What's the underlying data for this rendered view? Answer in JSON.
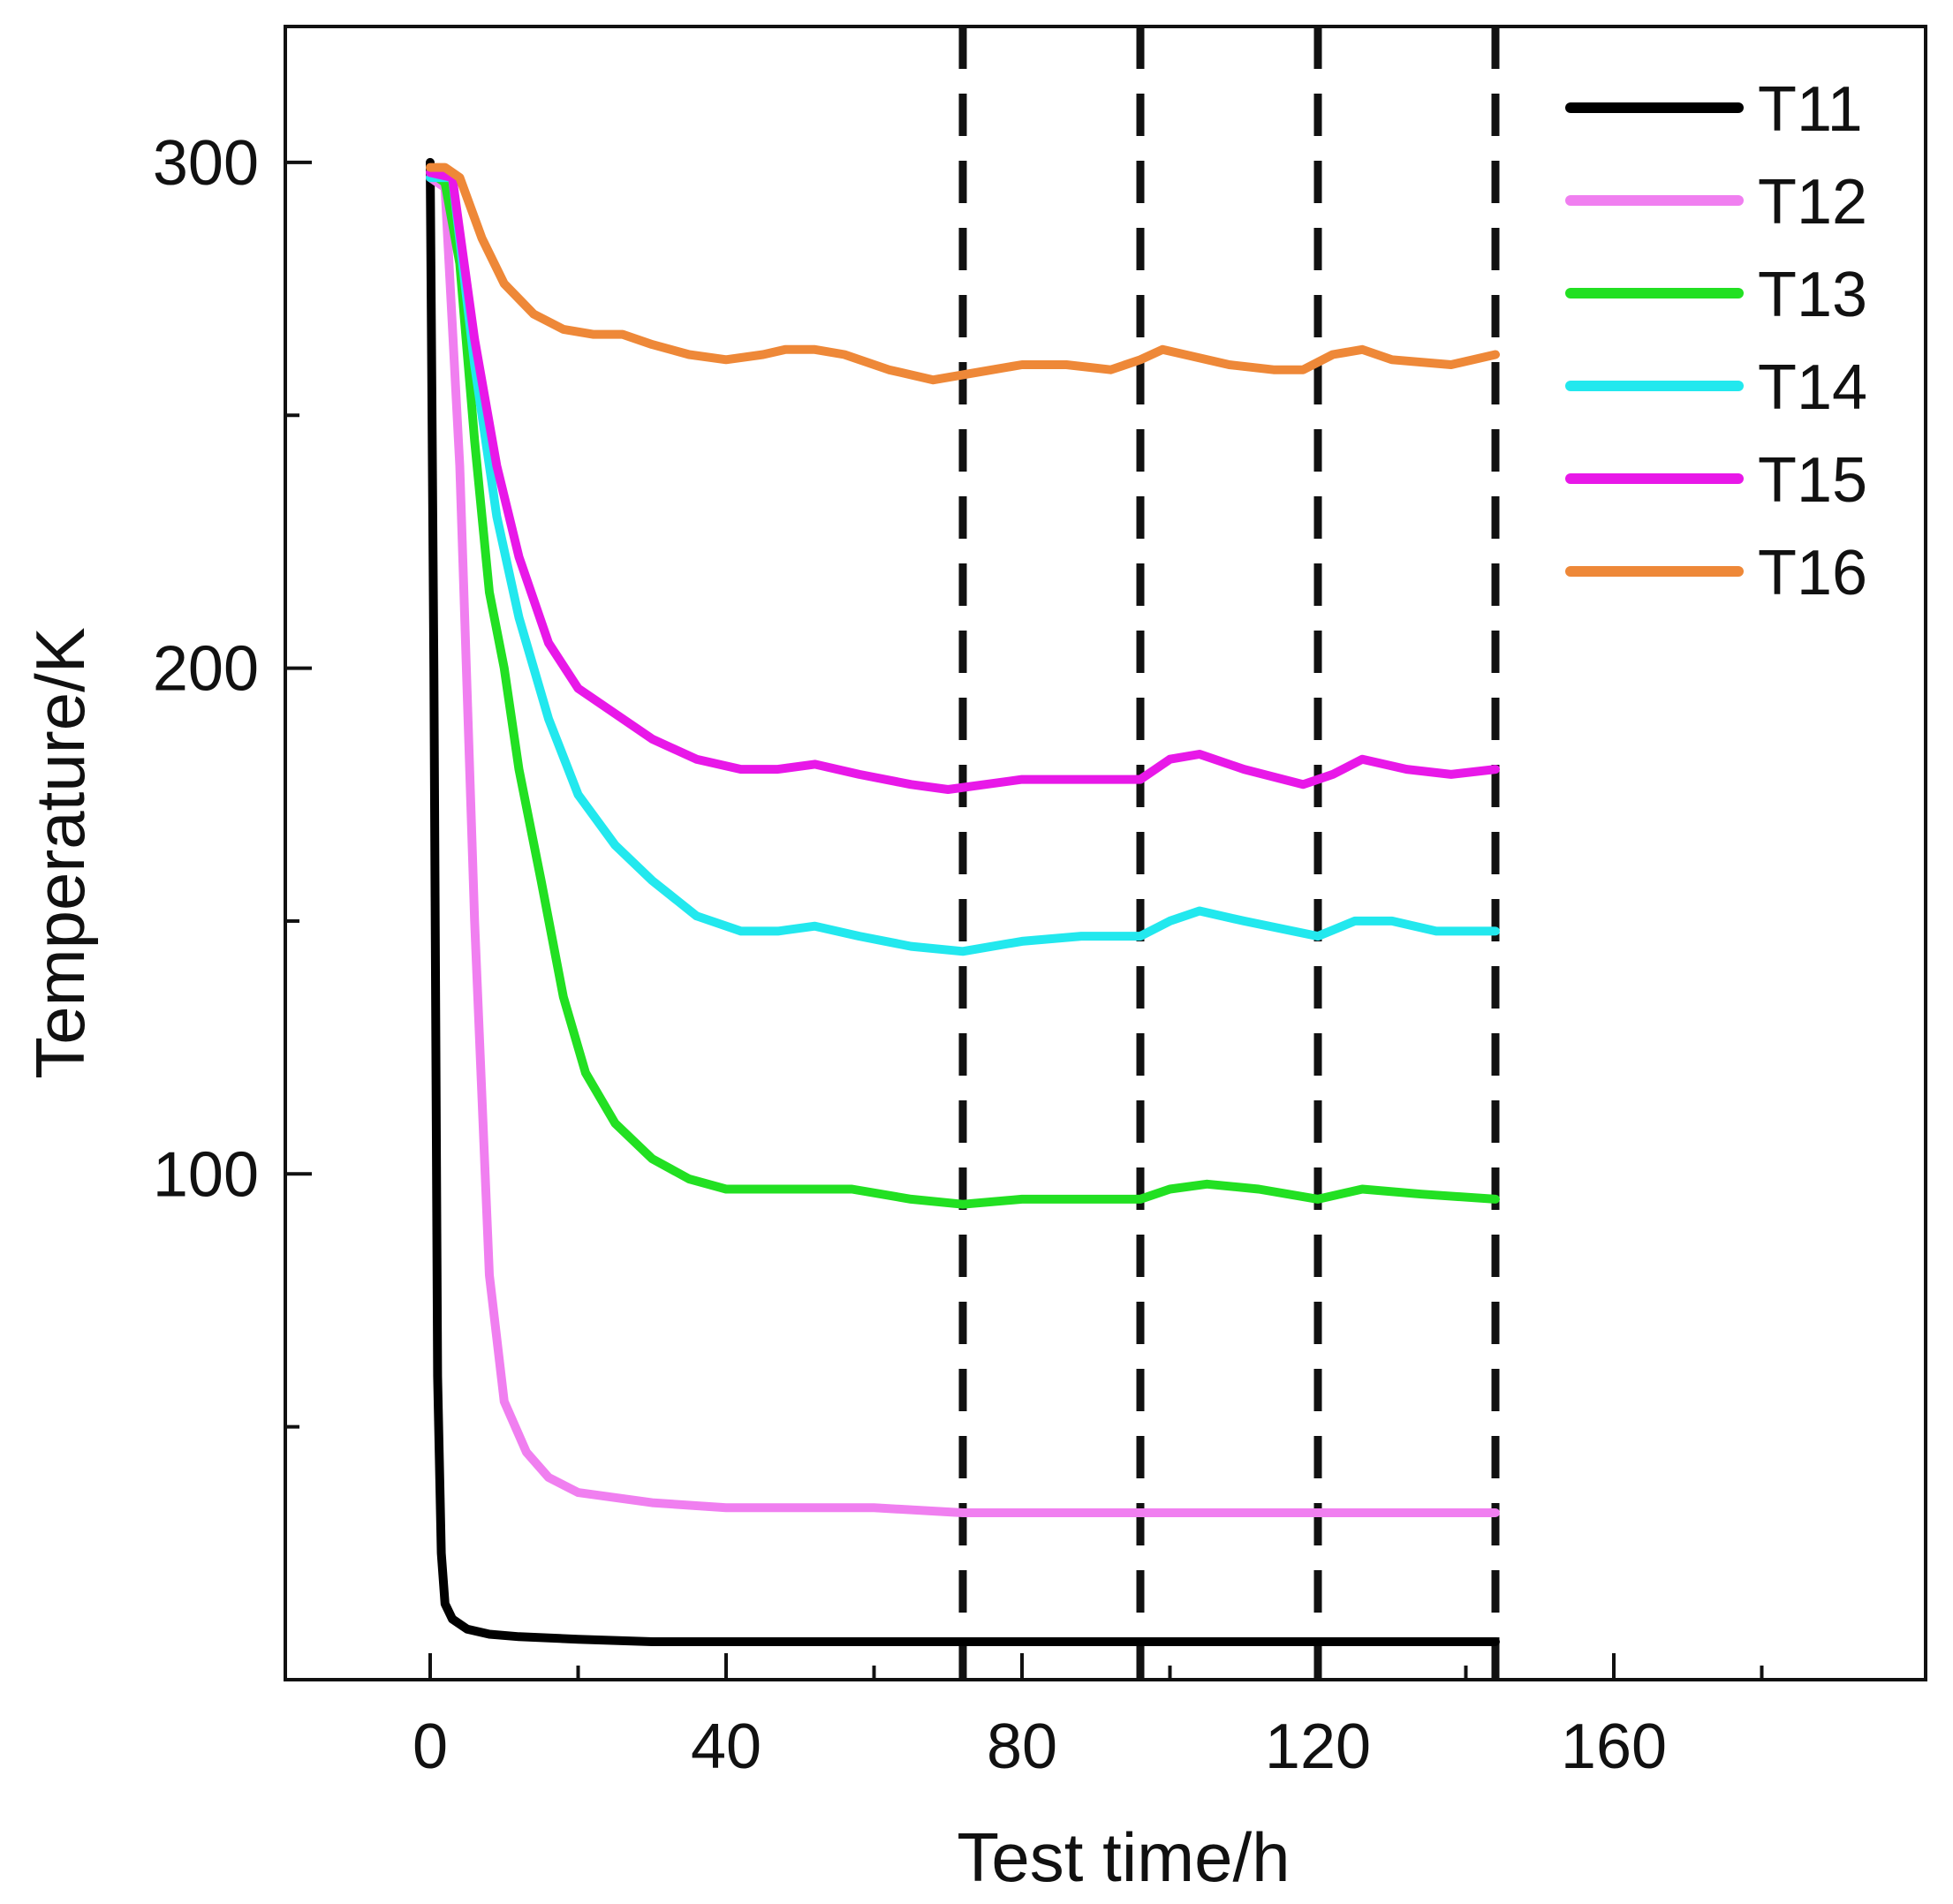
{
  "chart_data": {
    "type": "line",
    "title": "",
    "xlabel": "Test time/h",
    "ylabel": "Temperature/K",
    "xlim": [
      -20,
      200
    ],
    "ylim": [
      0,
      330
    ],
    "x_ticks": [
      0,
      40,
      80,
      120,
      160
    ],
    "x_minor_ticks": [
      20,
      60,
      100,
      140,
      180
    ],
    "y_ticks": [
      100,
      200,
      300
    ],
    "y_minor_ticks": [
      50,
      150,
      250
    ],
    "grid": false,
    "legend_position": "top-right",
    "reference_lines": [
      72,
      96,
      120,
      144
    ],
    "series": [
      {
        "name": "T11",
        "color": "#000000",
        "points": [
          [
            0,
            300
          ],
          [
            0.5,
            200
          ],
          [
            1,
            60
          ],
          [
            1.5,
            25
          ],
          [
            2,
            15
          ],
          [
            3,
            12
          ],
          [
            5,
            10
          ],
          [
            8,
            9
          ],
          [
            12,
            8.5
          ],
          [
            20,
            8
          ],
          [
            30,
            7.5
          ],
          [
            50,
            7.5
          ],
          [
            72,
            7.5
          ],
          [
            96,
            7.5
          ],
          [
            120,
            7.5
          ],
          [
            144,
            7.5
          ]
        ]
      },
      {
        "name": "T12",
        "color": "#f07ff0",
        "points": [
          [
            0,
            297
          ],
          [
            2,
            295
          ],
          [
            4,
            240
          ],
          [
            6,
            150
          ],
          [
            8,
            80
          ],
          [
            10,
            55
          ],
          [
            13,
            45
          ],
          [
            16,
            40
          ],
          [
            20,
            37
          ],
          [
            30,
            35
          ],
          [
            40,
            34
          ],
          [
            60,
            34
          ],
          [
            72,
            33
          ],
          [
            96,
            33
          ],
          [
            120,
            33
          ],
          [
            144,
            33
          ]
        ]
      },
      {
        "name": "T13",
        "color": "#22e022",
        "points": [
          [
            0,
            298
          ],
          [
            2,
            296
          ],
          [
            4,
            280
          ],
          [
            6,
            245
          ],
          [
            8,
            215
          ],
          [
            10,
            200
          ],
          [
            12,
            180
          ],
          [
            15,
            158
          ],
          [
            18,
            135
          ],
          [
            21,
            120
          ],
          [
            25,
            110
          ],
          [
            30,
            103
          ],
          [
            35,
            99
          ],
          [
            40,
            97
          ],
          [
            50,
            97
          ],
          [
            57,
            97
          ],
          [
            65,
            95
          ],
          [
            72,
            94
          ],
          [
            80,
            95
          ],
          [
            90,
            95
          ],
          [
            96,
            95
          ],
          [
            100,
            97
          ],
          [
            105,
            98
          ],
          [
            112,
            97
          ],
          [
            120,
            95
          ],
          [
            126,
            97
          ],
          [
            134,
            96
          ],
          [
            144,
            95
          ]
        ]
      },
      {
        "name": "T14",
        "color": "#22e8ee",
        "points": [
          [
            0,
            297
          ],
          [
            3,
            297
          ],
          [
            6,
            260
          ],
          [
            9,
            230
          ],
          [
            12,
            210
          ],
          [
            16,
            190
          ],
          [
            20,
            175
          ],
          [
            25,
            165
          ],
          [
            30,
            158
          ],
          [
            36,
            151
          ],
          [
            42,
            148
          ],
          [
            47,
            148
          ],
          [
            52,
            149
          ],
          [
            58,
            147
          ],
          [
            65,
            145
          ],
          [
            72,
            144
          ],
          [
            80,
            146
          ],
          [
            88,
            147
          ],
          [
            96,
            147
          ],
          [
            100,
            150
          ],
          [
            104,
            152
          ],
          [
            110,
            150
          ],
          [
            120,
            147
          ],
          [
            125,
            150
          ],
          [
            130,
            150
          ],
          [
            136,
            148
          ],
          [
            144,
            148
          ]
        ]
      },
      {
        "name": "T15",
        "color": "#e818e8",
        "points": [
          [
            0,
            298
          ],
          [
            3,
            297
          ],
          [
            6,
            265
          ],
          [
            9,
            240
          ],
          [
            12,
            222
          ],
          [
            16,
            205
          ],
          [
            20,
            196
          ],
          [
            25,
            191
          ],
          [
            30,
            186
          ],
          [
            36,
            182
          ],
          [
            42,
            180
          ],
          [
            47,
            180
          ],
          [
            52,
            181
          ],
          [
            58,
            179
          ],
          [
            65,
            177
          ],
          [
            70,
            176
          ],
          [
            75,
            177
          ],
          [
            80,
            178
          ],
          [
            90,
            178
          ],
          [
            96,
            178
          ],
          [
            100,
            182
          ],
          [
            104,
            183
          ],
          [
            110,
            180
          ],
          [
            118,
            177
          ],
          [
            122,
            179
          ],
          [
            126,
            182
          ],
          [
            132,
            180
          ],
          [
            138,
            179
          ],
          [
            144,
            180
          ]
        ]
      },
      {
        "name": "T16",
        "color": "#ee8838",
        "points": [
          [
            0,
            299
          ],
          [
            2,
            299
          ],
          [
            4,
            297
          ],
          [
            7,
            285
          ],
          [
            10,
            276
          ],
          [
            14,
            270
          ],
          [
            18,
            267
          ],
          [
            22,
            266
          ],
          [
            26,
            266
          ],
          [
            30,
            264
          ],
          [
            35,
            262
          ],
          [
            40,
            261
          ],
          [
            45,
            262
          ],
          [
            48,
            263
          ],
          [
            52,
            263
          ],
          [
            56,
            262
          ],
          [
            62,
            259
          ],
          [
            68,
            257
          ],
          [
            72,
            258
          ],
          [
            76,
            259
          ],
          [
            80,
            260
          ],
          [
            86,
            260
          ],
          [
            92,
            259
          ],
          [
            96,
            261
          ],
          [
            99,
            263
          ],
          [
            102,
            262
          ],
          [
            108,
            260
          ],
          [
            114,
            259
          ],
          [
            118,
            259
          ],
          [
            122,
            262
          ],
          [
            126,
            263
          ],
          [
            130,
            261
          ],
          [
            138,
            260
          ],
          [
            144,
            262
          ]
        ]
      }
    ]
  }
}
